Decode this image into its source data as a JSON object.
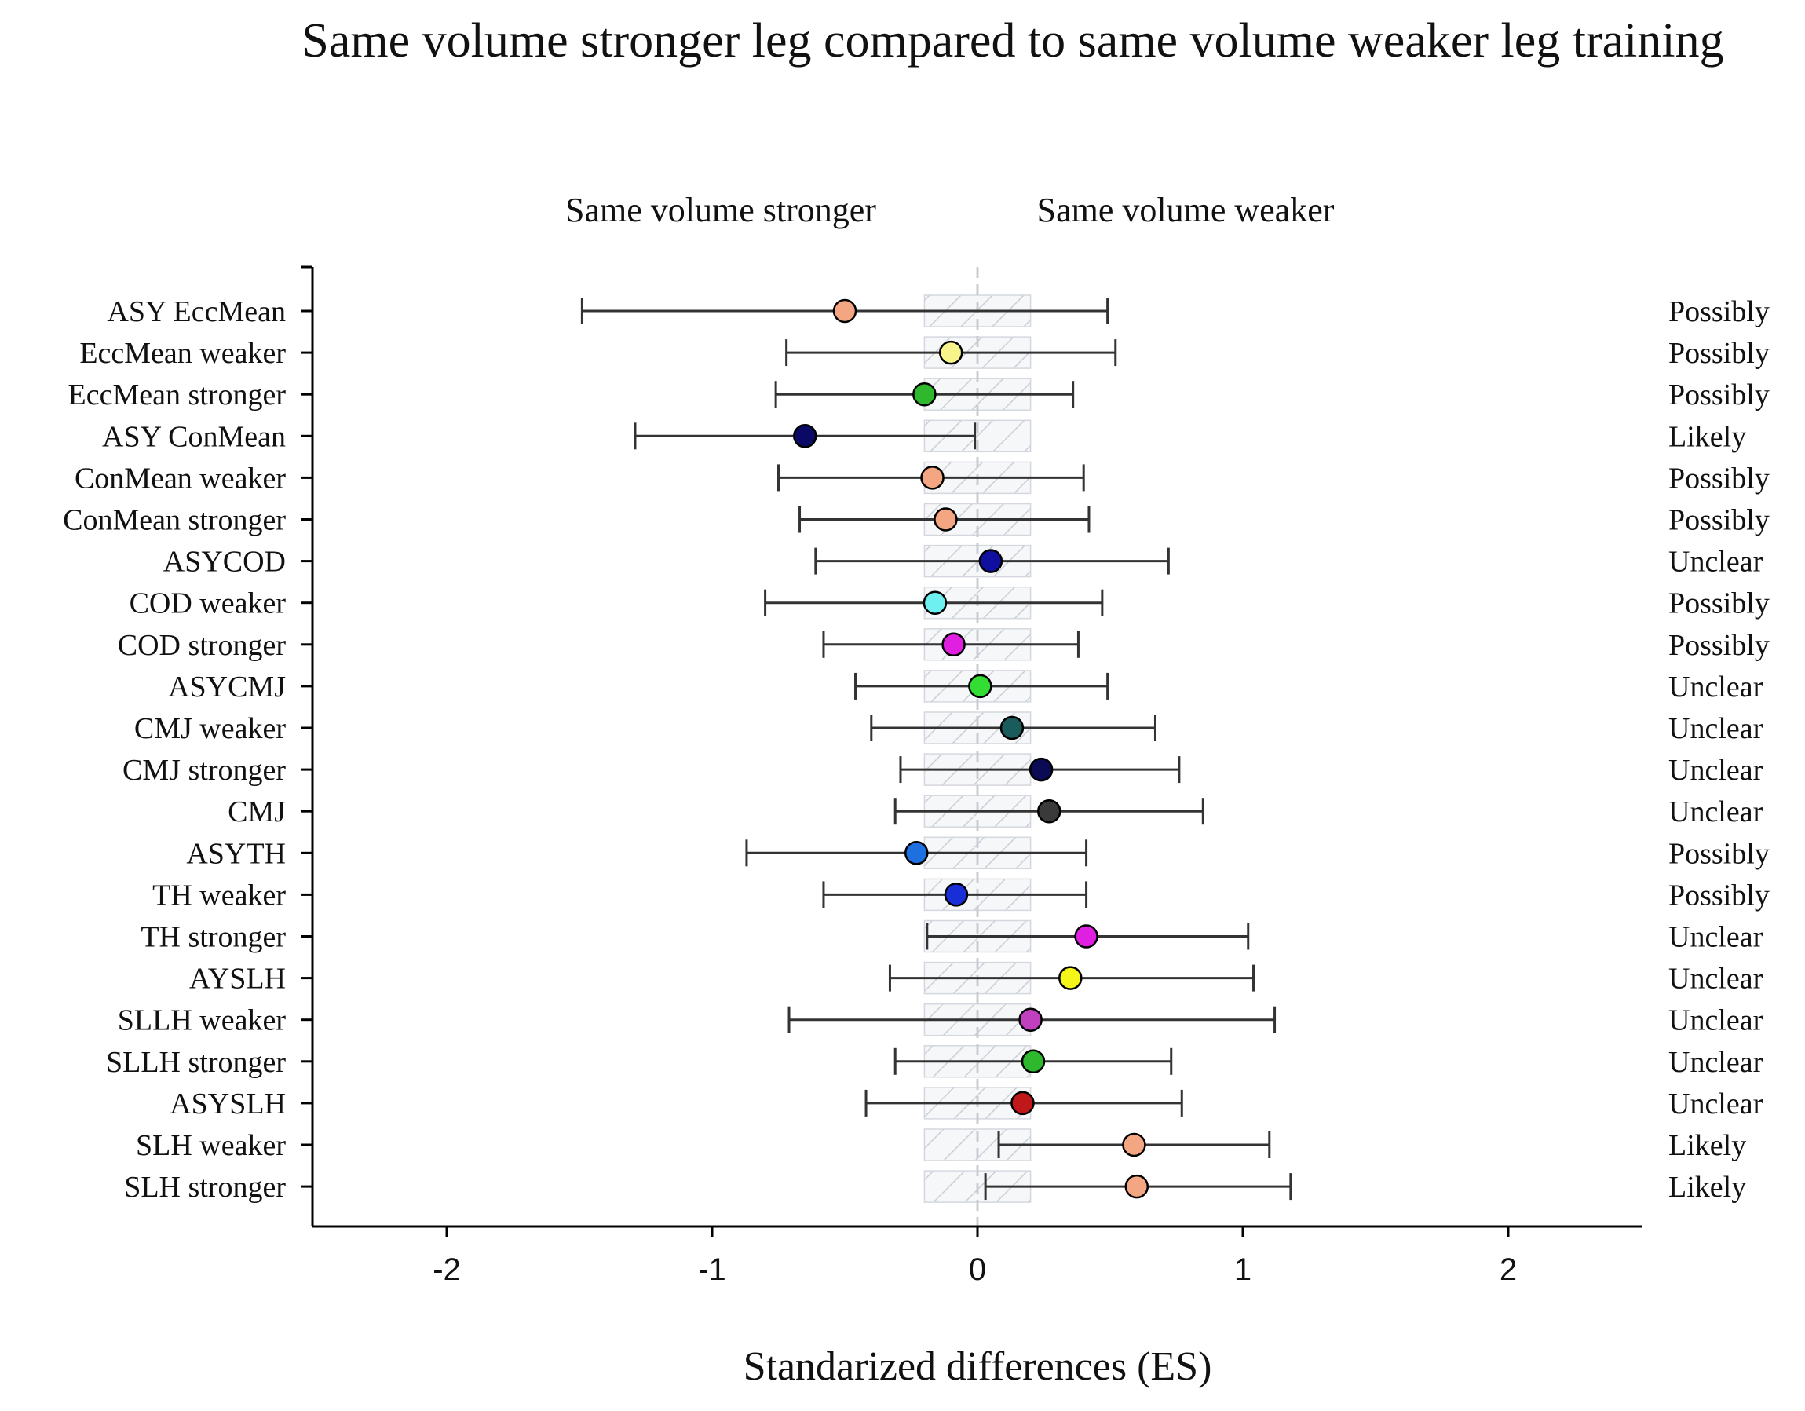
{
  "chart_data": {
    "type": "forest",
    "title": "Same volume stronger leg compared to same volume weaker leg training",
    "left_region_label": "Same volume stronger",
    "right_region_label": "Same volume weaker",
    "xlabel": "Standarized differences (ES)",
    "xlim": [
      -2.5,
      2.5
    ],
    "xticks": [
      "-2",
      "-1",
      "0",
      "1",
      "2"
    ],
    "xtick_values": [
      -2,
      -1,
      0,
      1,
      2
    ],
    "trivial_zone": [
      -0.2,
      0.2
    ],
    "rows": [
      {
        "label": "ASY EccMean",
        "es": -0.5,
        "lower": -1.49,
        "upper": 0.49,
        "qualifier": "Possibly",
        "color": "#f4a582"
      },
      {
        "label": "EccMean weaker",
        "es": -0.1,
        "lower": -0.72,
        "upper": 0.52,
        "qualifier": "Possibly",
        "color": "#f7f48b"
      },
      {
        "label": "EccMean stronger",
        "es": -0.2,
        "lower": -0.76,
        "upper": 0.36,
        "qualifier": "Possibly",
        "color": "#2eb82e"
      },
      {
        "label": "ASY ConMean",
        "es": -0.65,
        "lower": -1.29,
        "upper": -0.01,
        "qualifier": "Likely",
        "color": "#0a0a66"
      },
      {
        "label": "ConMean weaker",
        "es": -0.17,
        "lower": -0.75,
        "upper": 0.4,
        "qualifier": "Possibly",
        "color": "#f4a582"
      },
      {
        "label": "ConMean stronger",
        "es": -0.12,
        "lower": -0.67,
        "upper": 0.42,
        "qualifier": "Possibly",
        "color": "#f4a582"
      },
      {
        "label": "ASYCOD",
        "es": 0.05,
        "lower": -0.61,
        "upper": 0.72,
        "qualifier": "Unclear",
        "color": "#1010a0"
      },
      {
        "label": "COD weaker",
        "es": -0.16,
        "lower": -0.8,
        "upper": 0.47,
        "qualifier": "Possibly",
        "color": "#6ef0f0"
      },
      {
        "label": "COD stronger",
        "es": -0.09,
        "lower": -0.58,
        "upper": 0.38,
        "qualifier": "Possibly",
        "color": "#e020e0"
      },
      {
        "label": "ASYCMJ",
        "es": 0.01,
        "lower": -0.46,
        "upper": 0.49,
        "qualifier": "Unclear",
        "color": "#33dd33"
      },
      {
        "label": "CMJ weaker",
        "es": 0.13,
        "lower": -0.4,
        "upper": 0.67,
        "qualifier": "Unclear",
        "color": "#1a5c5c"
      },
      {
        "label": "CMJ stronger",
        "es": 0.24,
        "lower": -0.29,
        "upper": 0.76,
        "qualifier": "Unclear",
        "color": "#0a0a55"
      },
      {
        "label": "CMJ",
        "es": 0.27,
        "lower": -0.31,
        "upper": 0.85,
        "qualifier": "Unclear",
        "color": "#3a3a3a"
      },
      {
        "label": "ASYTH",
        "es": -0.23,
        "lower": -0.87,
        "upper": 0.41,
        "qualifier": "Possibly",
        "color": "#1e6fe0"
      },
      {
        "label": "TH weaker",
        "es": -0.08,
        "lower": -0.58,
        "upper": 0.41,
        "qualifier": "Possibly",
        "color": "#1a2ed8"
      },
      {
        "label": "TH stronger",
        "es": 0.41,
        "lower": -0.19,
        "upper": 1.02,
        "qualifier": "Unclear",
        "color": "#e020e0"
      },
      {
        "label": "AYSLH",
        "es": 0.35,
        "lower": -0.33,
        "upper": 1.04,
        "qualifier": "Unclear",
        "color": "#f5f51a"
      },
      {
        "label": "SLLH weaker",
        "es": 0.2,
        "lower": -0.71,
        "upper": 1.12,
        "qualifier": "Unclear",
        "color": "#c040c0"
      },
      {
        "label": "SLLH stronger",
        "es": 0.21,
        "lower": -0.31,
        "upper": 0.73,
        "qualifier": "Unclear",
        "color": "#2eb82e"
      },
      {
        "label": "ASYSLH",
        "es": 0.17,
        "lower": -0.42,
        "upper": 0.77,
        "qualifier": "Unclear",
        "color": "#c01818"
      },
      {
        "label": "SLH weaker",
        "es": 0.59,
        "lower": 0.08,
        "upper": 1.1,
        "qualifier": "Likely",
        "color": "#f4a582"
      },
      {
        "label": "SLH stronger",
        "es": 0.6,
        "lower": 0.03,
        "upper": 1.18,
        "qualifier": "Likely",
        "color": "#f4a582"
      }
    ]
  }
}
